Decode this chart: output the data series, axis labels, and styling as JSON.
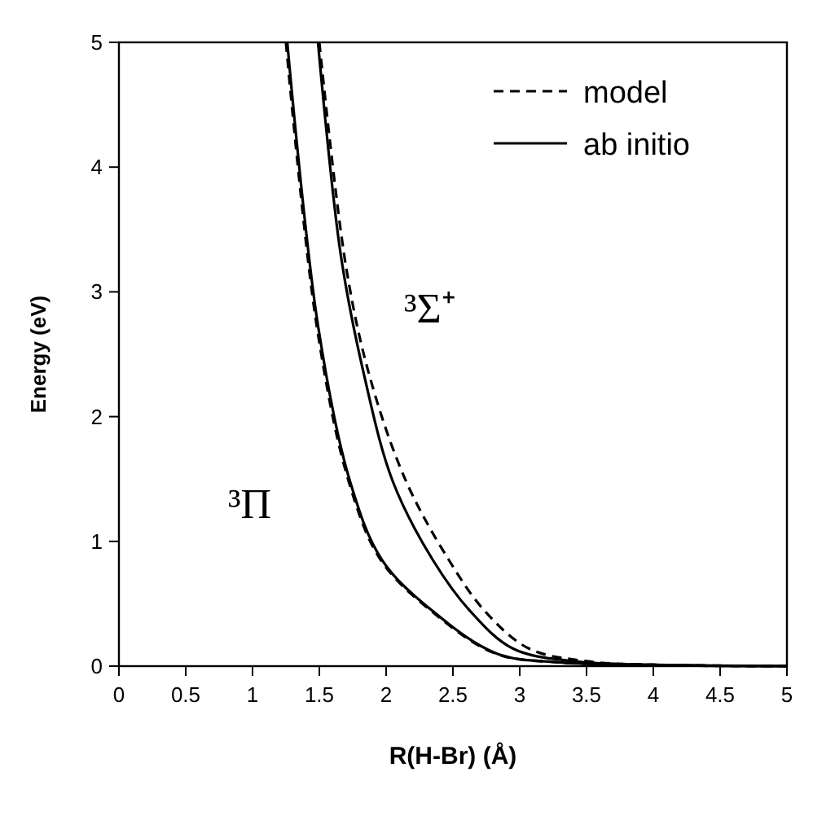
{
  "chart_data": {
    "type": "line",
    "xlabel": "R(H-Br) (Å)",
    "ylabel": "Energy (eV)",
    "xlim": [
      0,
      5
    ],
    "ylim": [
      0,
      5
    ],
    "xticks": [
      0,
      0.5,
      1,
      1.5,
      2,
      2.5,
      3,
      3.5,
      4,
      4.5,
      5
    ],
    "yticks": [
      0,
      1,
      2,
      3,
      4,
      5
    ],
    "grid": false,
    "legend": "top right",
    "series": [
      {
        "name": "model",
        "color": "#000000",
        "line_style": "dashed",
        "x": [
          1.5,
          1.7,
          1.88,
          2.15,
          2.47,
          2.74,
          3.07,
          3.5,
          4,
          5
        ],
        "values": [
          5,
          3.2,
          2.31,
          1.48,
          0.85,
          0.44,
          0.14,
          0.04,
          0.01,
          0
        ]
      },
      {
        "name": "ab initio",
        "color": "#000000",
        "line_style": "solid",
        "x": [
          1.49,
          1.66,
          1.84,
          2.05,
          2.35,
          2.63,
          2.95,
          3.4,
          4,
          5
        ],
        "values": [
          5,
          3.3,
          2.31,
          1.48,
          0.85,
          0.44,
          0.14,
          0.04,
          0.01,
          0
        ]
      },
      {
        "color": "#000000",
        "line_style": "dashed",
        "x": [
          1.25,
          1.48,
          1.72,
          1.96,
          2.34,
          2.82,
          3.3,
          4,
          5
        ],
        "values": [
          5,
          2.73,
          1.48,
          0.85,
          0.44,
          0.1,
          0.03,
          0.01,
          0
        ]
      },
      {
        "color": "#000000",
        "line_style": "solid",
        "x": [
          1.26,
          1.49,
          1.73,
          1.97,
          2.35,
          2.83,
          3.3,
          4,
          5
        ],
        "values": [
          5,
          2.73,
          1.48,
          0.85,
          0.44,
          0.1,
          0.03,
          0.01,
          0
        ]
      }
    ],
    "annotations": [
      "³Σ⁺",
      "³Π"
    ]
  }
}
